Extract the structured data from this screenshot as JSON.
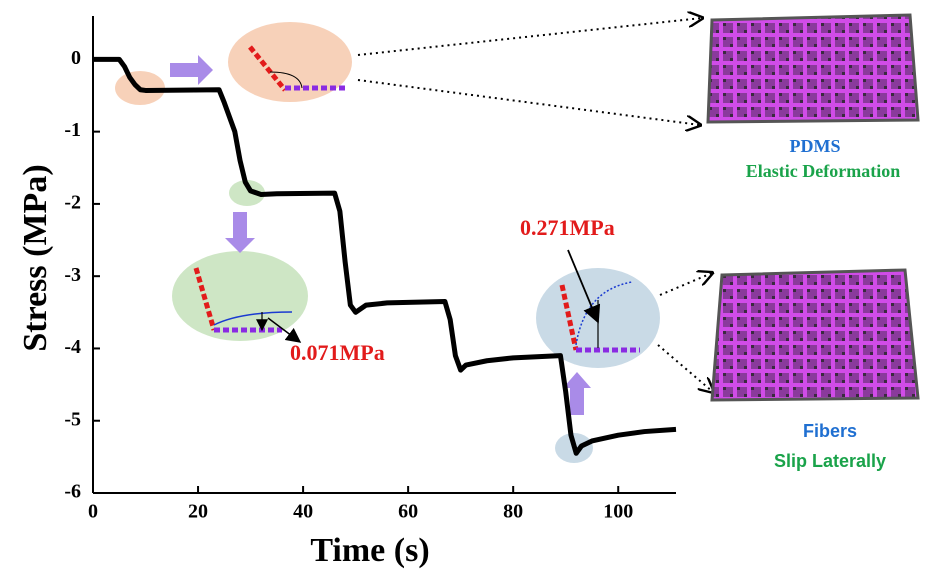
{
  "chart_data": {
    "type": "line",
    "x_label": "Time (s)",
    "y_label": "Stress (MPa)",
    "x": [
      0,
      5,
      6,
      7,
      8,
      9,
      10,
      24,
      25,
      27,
      28,
      29,
      30,
      32,
      35,
      46,
      47,
      48,
      49,
      50,
      52,
      56,
      67,
      68,
      69,
      70,
      71,
      75,
      80,
      89,
      90,
      91,
      92,
      93,
      95,
      100,
      105,
      111
    ],
    "values": [
      0,
      0,
      -0.1,
      -0.25,
      -0.35,
      -0.42,
      -0.43,
      -0.42,
      -0.6,
      -1.0,
      -1.4,
      -1.7,
      -1.82,
      -1.87,
      -1.86,
      -1.85,
      -2.1,
      -2.8,
      -3.4,
      -3.5,
      -3.4,
      -3.37,
      -3.35,
      -3.6,
      -4.1,
      -4.3,
      -4.23,
      -4.17,
      -4.13,
      -4.1,
      -4.6,
      -5.2,
      -5.45,
      -5.35,
      -5.28,
      -5.2,
      -5.15,
      -5.12
    ],
    "color": "#000000",
    "xlim": [
      0,
      111
    ],
    "ylim": [
      -6,
      0.6
    ],
    "xticks": [
      0,
      20,
      40,
      60,
      80,
      100
    ],
    "yticks": [
      0,
      -1,
      -2,
      -3,
      -4,
      -5,
      -6
    ],
    "annotations": [
      "0.071MPa",
      "0.271MPa"
    ],
    "panels": [
      {
        "title": "PDMS",
        "subtitle": "Elastic Deformation"
      },
      {
        "title": "Fibers",
        "subtitle": "Slip Laterally"
      }
    ]
  }
}
